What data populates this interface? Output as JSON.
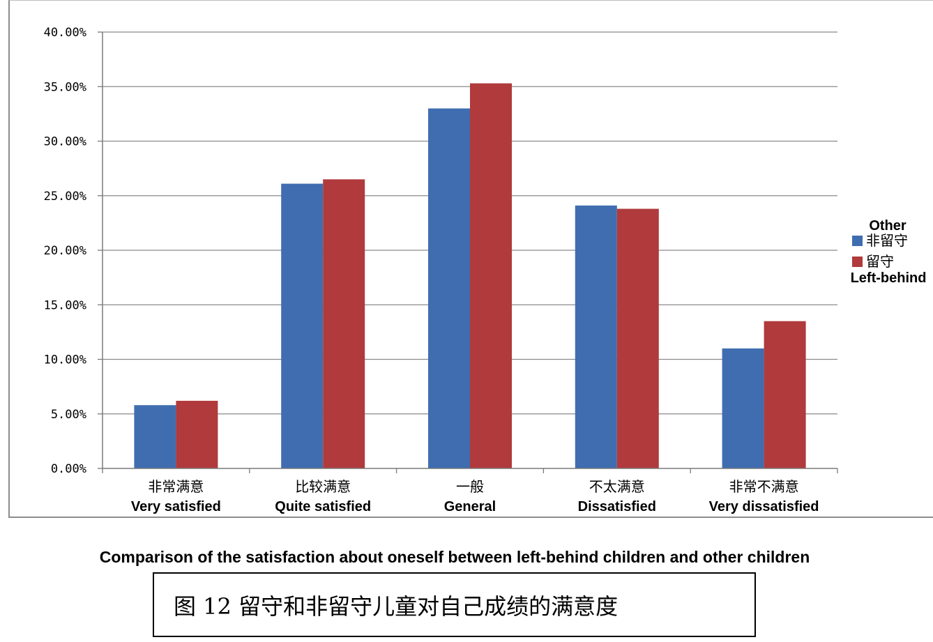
{
  "chart_data": {
    "type": "bar",
    "categories": [
      {
        "cn": "非常满意",
        "en": "Very satisfied"
      },
      {
        "cn": "比较满意",
        "en": "Quite satisfied"
      },
      {
        "cn": "一般",
        "en": "General"
      },
      {
        "cn": "不太满意",
        "en": "Dissatisfied"
      },
      {
        "cn": "非常不满意",
        "en": "Very dissatisfied"
      }
    ],
    "series": [
      {
        "name": "非留守",
        "name_en": "Other",
        "color": "#3f6db0",
        "values": [
          5.8,
          26.1,
          33.0,
          24.1,
          11.0
        ]
      },
      {
        "name": "留守",
        "name_en": "Left-behind",
        "color": "#b03a3c",
        "values": [
          6.2,
          26.5,
          35.3,
          23.8,
          13.5
        ]
      }
    ],
    "ylim": [
      0,
      40
    ],
    "yticks": [
      "0.00%",
      "5.00%",
      "10.00%",
      "15.00%",
      "20.00%",
      "25.00%",
      "30.00%",
      "35.00%",
      "40.00%"
    ],
    "grid": true,
    "legend_position": "right",
    "title": "Comparison of the satisfaction about oneself between left-behind children and other children",
    "caption_cn": "图 12  留守和非留守儿童对自己成绩的满意度"
  }
}
